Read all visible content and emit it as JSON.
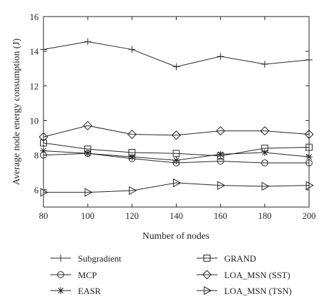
{
  "chart_data": {
    "type": "line",
    "title": "",
    "xlabel": "Number of nodes",
    "ylabel": "Average node energy consumption (J)",
    "x": [
      80,
      100,
      120,
      140,
      160,
      180,
      200
    ],
    "xlim": [
      80,
      200
    ],
    "ylim": [
      5,
      16
    ],
    "xticks": [
      "80",
      "100",
      "120",
      "140",
      "160",
      "180",
      "200"
    ],
    "yticks": [
      "6",
      "8",
      "10",
      "12",
      "14",
      "16"
    ],
    "grid": false,
    "legend_position": "below",
    "series": [
      {
        "name": "Subgradient",
        "marker": "plus",
        "values": [
          14.1,
          14.55,
          14.1,
          13.1,
          13.7,
          13.25,
          13.5
        ]
      },
      {
        "name": "MCP",
        "marker": "circle",
        "values": [
          8.0,
          8.1,
          7.8,
          7.55,
          7.65,
          7.55,
          7.55
        ]
      },
      {
        "name": "EASR",
        "marker": "asterisk",
        "values": [
          8.25,
          8.1,
          7.9,
          7.7,
          8.05,
          8.15,
          7.9
        ]
      },
      {
        "name": "GRAND",
        "marker": "square",
        "values": [
          8.7,
          8.35,
          8.15,
          8.1,
          7.95,
          8.4,
          8.45
        ]
      },
      {
        "name": "LOA_MSN (SST)",
        "marker": "diamond",
        "values": [
          9.05,
          9.7,
          9.2,
          9.15,
          9.4,
          9.4,
          9.2
        ]
      },
      {
        "name": "LOA_MSN (TSN)",
        "marker": "triangle-right",
        "values": [
          5.85,
          5.85,
          5.95,
          6.4,
          6.25,
          6.2,
          6.25
        ]
      }
    ]
  }
}
